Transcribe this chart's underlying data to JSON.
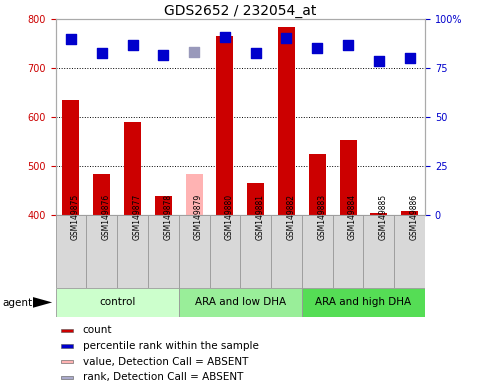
{
  "title": "GDS2652 / 232054_at",
  "samples": [
    "GSM149875",
    "GSM149876",
    "GSM149877",
    "GSM149878",
    "GSM149879",
    "GSM149880",
    "GSM149881",
    "GSM149882",
    "GSM149883",
    "GSM149884",
    "GSM149885",
    "GSM149886"
  ],
  "bar_values": [
    635,
    484,
    590,
    438,
    484,
    765,
    466,
    785,
    524,
    553,
    405,
    408
  ],
  "bar_colors": [
    "#cc0000",
    "#cc0000",
    "#cc0000",
    "#cc0000",
    "#ffb3b3",
    "#cc0000",
    "#cc0000",
    "#cc0000",
    "#cc0000",
    "#cc0000",
    "#cc0000",
    "#cc0000"
  ],
  "dot_values": [
    760,
    730,
    748,
    727,
    732,
    763,
    730,
    762,
    742,
    748,
    715,
    720
  ],
  "dot_colors": [
    "#0000cc",
    "#0000cc",
    "#0000cc",
    "#0000cc",
    "#9999bb",
    "#0000cc",
    "#0000cc",
    "#0000cc",
    "#0000cc",
    "#0000cc",
    "#0000cc",
    "#0000cc"
  ],
  "ylim_left": [
    400,
    800
  ],
  "ylim_right": [
    0,
    100
  ],
  "yticks_left": [
    400,
    500,
    600,
    700,
    800
  ],
  "yticks_right": [
    0,
    25,
    50,
    75,
    100
  ],
  "groups": [
    {
      "label": "control",
      "start": 0,
      "end": 3,
      "color": "#ccffcc"
    },
    {
      "label": "ARA and low DHA",
      "start": 4,
      "end": 7,
      "color": "#99ee99"
    },
    {
      "label": "ARA and high DHA",
      "start": 8,
      "end": 11,
      "color": "#55dd55"
    }
  ],
  "legend_items": [
    {
      "label": "count",
      "color": "#cc0000"
    },
    {
      "label": "percentile rank within the sample",
      "color": "#0000cc"
    },
    {
      "label": "value, Detection Call = ABSENT",
      "color": "#ffb3b3"
    },
    {
      "label": "rank, Detection Call = ABSENT",
      "color": "#aaaacc"
    }
  ],
  "bar_width": 0.55,
  "dot_size": 55,
  "title_fontsize": 10,
  "axis_color_left": "#cc0000",
  "axis_color_right": "#0000cc",
  "bar_bottom": 400,
  "tick_label_fontsize": 7,
  "group_label_fontsize": 7.5,
  "legend_fontsize": 7.5
}
